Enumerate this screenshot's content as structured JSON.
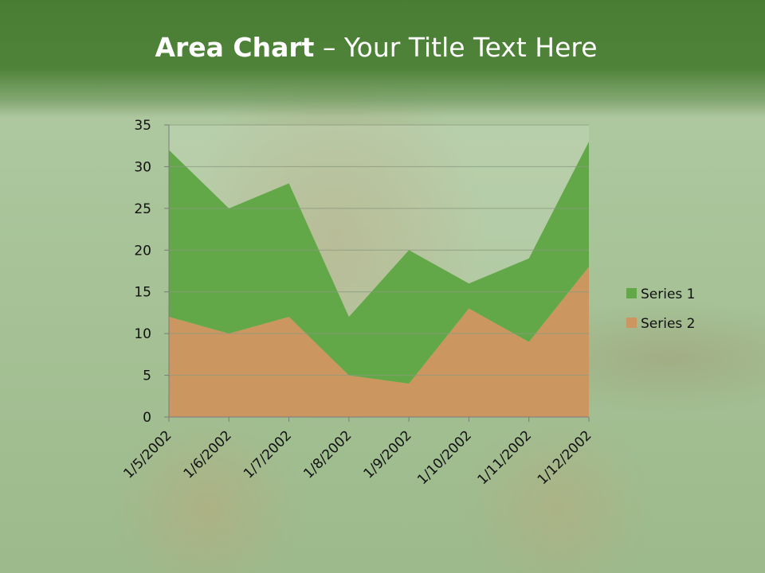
{
  "slide": {
    "title_bold": "Area Chart",
    "title_rest": " – Your Title Text Here"
  },
  "chart_data": {
    "type": "area",
    "stacked": true,
    "categories": [
      "1/5/2002",
      "1/6/2002",
      "1/7/2002",
      "1/8/2002",
      "1/9/2002",
      "1/10/2002",
      "1/11/2002",
      "1/12/2002"
    ],
    "series": [
      {
        "name": "Series 1",
        "values": [
          20,
          15,
          16,
          7,
          16,
          3,
          10,
          15
        ],
        "color": "#63a848"
      },
      {
        "name": "Series 2",
        "values": [
          12,
          10,
          12,
          5,
          4,
          13,
          9,
          18
        ],
        "color": "#cc9660"
      }
    ],
    "ylim": [
      0,
      35
    ],
    "yticks": [
      "0",
      "5",
      "10",
      "15",
      "20",
      "25",
      "30",
      "35"
    ],
    "grid": true,
    "legend": "right"
  }
}
